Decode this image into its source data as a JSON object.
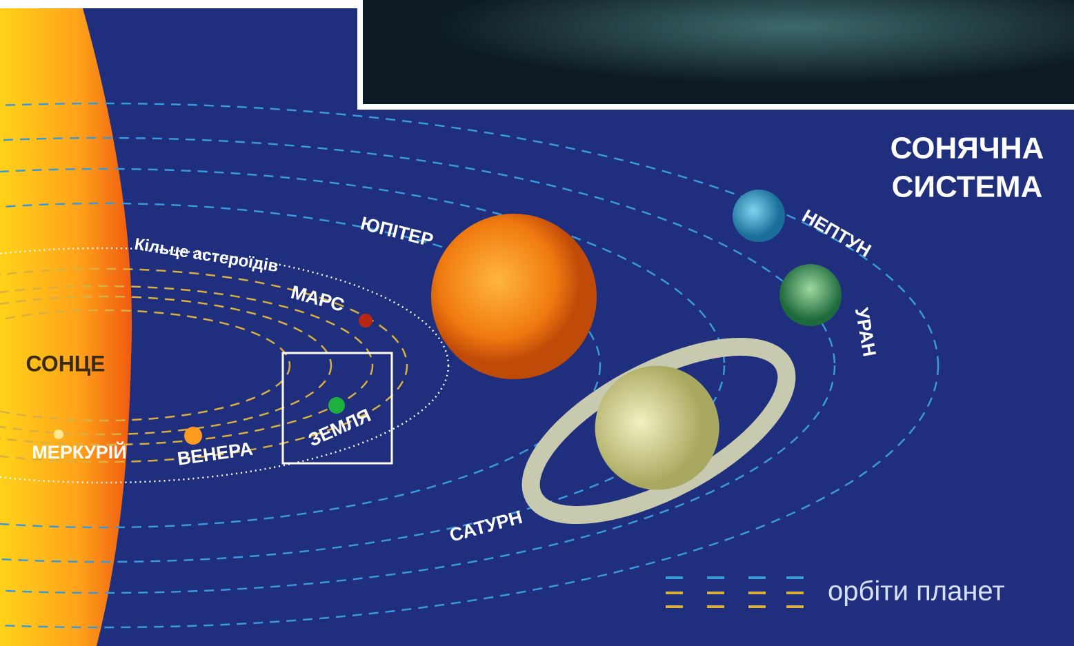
{
  "title": {
    "line1": "СОНЯЧНА",
    "line2": "СИСТЕМА"
  },
  "sun": "СОНЦЕ",
  "asteroid_belt": "Кільце астероїдів",
  "planets": {
    "mercury": "МЕРКУРІЙ",
    "venus": "ВЕНЕРА",
    "earth": "ЗЕМЛЯ",
    "mars": "МАРС",
    "jupiter": "ЮПІТЕР",
    "saturn": "САТУРН",
    "uranus": "УРАН",
    "neptune": "НЕПТУН"
  },
  "legend": "орбіти планет"
}
